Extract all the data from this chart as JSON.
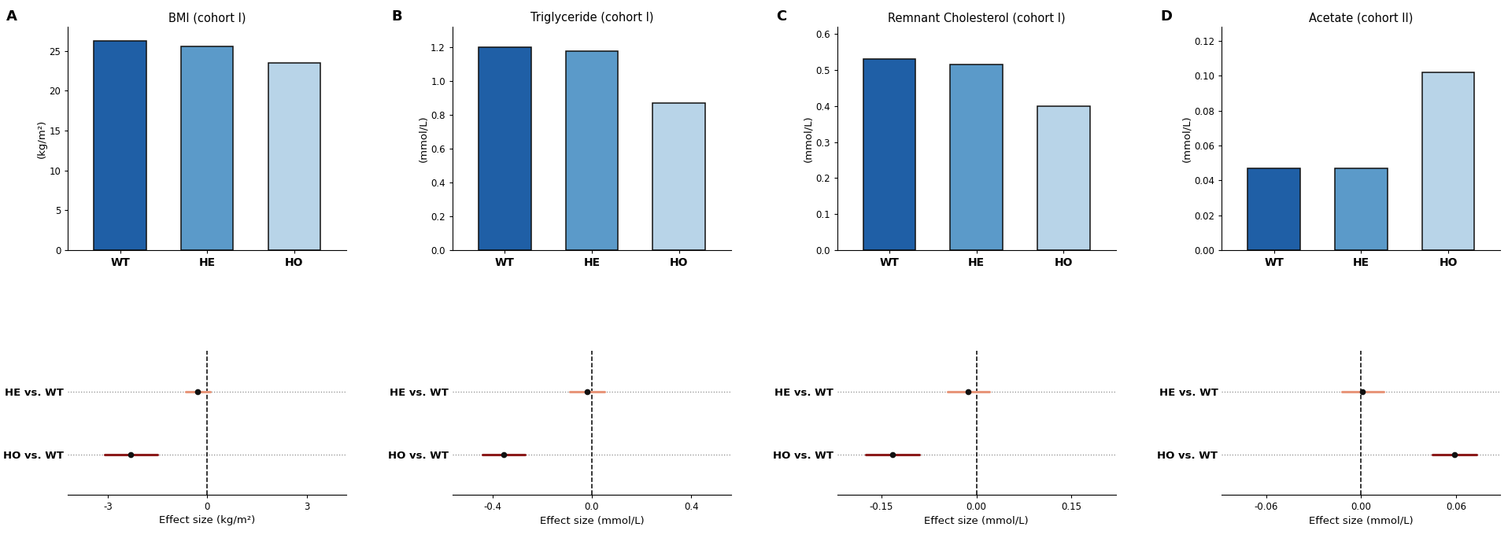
{
  "panels": [
    {
      "label": "A",
      "title": "BMI (cohort I)",
      "ylabel": "(kg/m²)",
      "bar_values": [
        26.2,
        25.6,
        23.5
      ],
      "bar_colors": [
        "#1f5fa6",
        "#5b9ac9",
        "#b8d4e8"
      ],
      "bar_labels": [
        "WT",
        "HE",
        "HO"
      ],
      "ylim": [
        0,
        28
      ],
      "yticks": [
        0,
        5,
        10,
        15,
        20,
        25
      ],
      "ytick_labels": [
        "0",
        "5",
        "10",
        "15",
        "20",
        "25"
      ],
      "effect_xlim": [
        -4.2,
        4.2
      ],
      "effect_xticks": [
        -3,
        0,
        3
      ],
      "effect_xtick_labels": [
        "-3",
        "0",
        "3"
      ],
      "effect_xlabel": "Effect size (kg/m²)",
      "he_effect": -0.28,
      "he_ci": [
        -0.65,
        0.1
      ],
      "ho_effect": -2.3,
      "ho_ci": [
        -3.1,
        -1.5
      ]
    },
    {
      "label": "B",
      "title": "Triglyceride (cohort I)",
      "ylabel": "(mmol/L)",
      "bar_values": [
        1.2,
        1.175,
        0.87
      ],
      "bar_colors": [
        "#1f5fa6",
        "#5b9ac9",
        "#b8d4e8"
      ],
      "bar_labels": [
        "WT",
        "HE",
        "HO"
      ],
      "ylim": [
        0,
        1.32
      ],
      "yticks": [
        0.0,
        0.2,
        0.4,
        0.6,
        0.8,
        1.0,
        1.2
      ],
      "ytick_labels": [
        "0.0",
        "0.2",
        "0.4",
        "0.6",
        "0.8",
        "1.0",
        "1.2"
      ],
      "effect_xlim": [
        -0.56,
        0.56
      ],
      "effect_xticks": [
        -0.4,
        0.0,
        0.4
      ],
      "effect_xtick_labels": [
        "-0.4",
        "0.0",
        "0.4"
      ],
      "effect_xlabel": "Effect size (mmol/L)",
      "he_effect": -0.02,
      "he_ci": [
        -0.09,
        0.05
      ],
      "ho_effect": -0.355,
      "ho_ci": [
        -0.44,
        -0.27
      ]
    },
    {
      "label": "C",
      "title": "Remnant Cholesterol (cohort I)",
      "ylabel": "(mmol/L)",
      "bar_values": [
        0.53,
        0.515,
        0.4
      ],
      "bar_colors": [
        "#1f5fa6",
        "#5b9ac9",
        "#b8d4e8"
      ],
      "bar_labels": [
        "WT",
        "HE",
        "HO"
      ],
      "ylim": [
        0,
        0.62
      ],
      "yticks": [
        0.0,
        0.1,
        0.2,
        0.3,
        0.4,
        0.5,
        0.6
      ],
      "ytick_labels": [
        "0.0",
        "0.1",
        "0.2",
        "0.3",
        "0.4",
        "0.5",
        "0.6"
      ],
      "effect_xlim": [
        -0.22,
        0.22
      ],
      "effect_xticks": [
        -0.15,
        0.0,
        0.15
      ],
      "effect_xtick_labels": [
        "-0.15",
        "0.00",
        "0.15"
      ],
      "effect_xlabel": "Effect size (mmol/L)",
      "he_effect": -0.013,
      "he_ci": [
        -0.045,
        0.02
      ],
      "ho_effect": -0.133,
      "ho_ci": [
        -0.175,
        -0.09
      ]
    },
    {
      "label": "D",
      "title": "Acetate (cohort II)",
      "ylabel": "(mmol/L)",
      "bar_values": [
        0.047,
        0.047,
        0.102
      ],
      "bar_colors": [
        "#1f5fa6",
        "#5b9ac9",
        "#b8d4e8"
      ],
      "bar_labels": [
        "WT",
        "HE",
        "HO"
      ],
      "ylim": [
        0,
        0.128
      ],
      "yticks": [
        0.0,
        0.02,
        0.04,
        0.06,
        0.08,
        0.1,
        0.12
      ],
      "ytick_labels": [
        "0.00",
        "0.02",
        "0.04",
        "0.06",
        "0.08",
        "0.10",
        "0.12"
      ],
      "effect_xlim": [
        -0.088,
        0.088
      ],
      "effect_xticks": [
        -0.06,
        0.0,
        0.06
      ],
      "effect_xtick_labels": [
        "-0.06",
        "0.00",
        "0.06"
      ],
      "effect_xlabel": "Effect size (mmol/L)",
      "he_effect": 0.001,
      "he_ci": [
        -0.012,
        0.014
      ],
      "ho_effect": 0.059,
      "ho_ci": [
        0.045,
        0.073
      ]
    }
  ],
  "he_color": "#e8967a",
  "ho_color": "#8b1a1a",
  "dot_color": "#111111",
  "background_color": "#ffffff",
  "fig_width": 19.16,
  "fig_height": 6.84,
  "bar_edgecolor": "#111111",
  "bar_linewidth": 1.1,
  "bar_width": 0.6
}
